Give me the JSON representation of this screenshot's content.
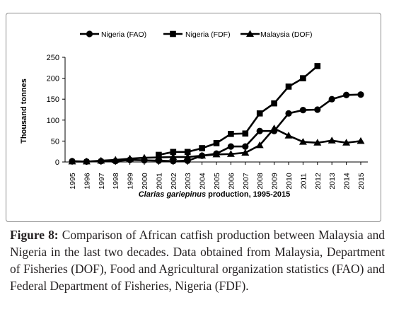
{
  "chart_data": {
    "type": "line",
    "xlabel": "Clarias gariepinus production, 1995-2015",
    "ylabel": "Thousand tonnes",
    "ylim": [
      0,
      250
    ],
    "yticks": [
      0,
      50,
      100,
      150,
      200,
      250
    ],
    "legend_position": "top",
    "grid": false,
    "categories": [
      "1995",
      "1996",
      "1997",
      "1998",
      "1999",
      "2000",
      "2001",
      "2002",
      "2003",
      "2004",
      "2005",
      "2006",
      "2007",
      "2008",
      "2009",
      "2010",
      "2011",
      "2012",
      "2013",
      "2014",
      "2015"
    ],
    "series": [
      {
        "name": "Nigeria (FAO)",
        "marker": "circle",
        "color": "#000000",
        "values": [
          2,
          1,
          2,
          2,
          5,
          4,
          3,
          2,
          3,
          15,
          20,
          37,
          37,
          74,
          74,
          116,
          124,
          125,
          150,
          160,
          161
        ]
      },
      {
        "name": "Nigeria (FDF)",
        "marker": "square",
        "color": "#000000",
        "values": [
          null,
          null,
          null,
          null,
          null,
          null,
          17,
          24,
          24,
          33,
          45,
          67,
          68,
          116,
          140,
          180,
          200,
          229,
          null,
          null,
          null
        ]
      },
      {
        "name": "Malaysia (DOF)",
        "marker": "triangle",
        "color": "#000000",
        "values": [
          1,
          1,
          3,
          5,
          8,
          10,
          11,
          12,
          12,
          15,
          18,
          19,
          22,
          40,
          80,
          63,
          48,
          46,
          51,
          46,
          50
        ]
      }
    ]
  },
  "caption": {
    "label": "Figure 8:",
    "text": " Comparison of African catfish production between Malaysia and Nigeria in the last two decades. Data obtained from Malaysia, Department of Fisheries (DOF), Food and Agricultural organization statistics (FAO) and Federal Department of Fisheries, Nigeria (FDF)."
  }
}
